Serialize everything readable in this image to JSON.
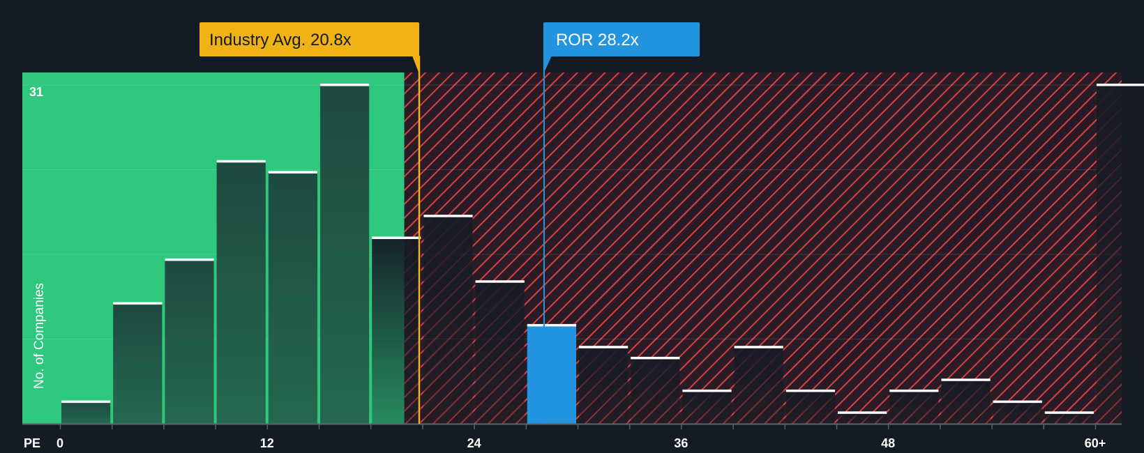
{
  "chart_data": {
    "type": "bar",
    "title": "",
    "xlabel": "PE",
    "ylabel": "No. of Companies",
    "ylim": [
      0,
      32
    ],
    "y_max_label": "31",
    "bin_width": 3,
    "x_ticks": [
      {
        "value": 0,
        "label": "0"
      },
      {
        "value": 12,
        "label": "12"
      },
      {
        "value": 24,
        "label": "24"
      },
      {
        "value": 36,
        "label": "36"
      },
      {
        "value": 48,
        "label": "48"
      },
      {
        "value": 60,
        "label": "60+"
      }
    ],
    "bins": [
      {
        "start": 0,
        "count": 2
      },
      {
        "start": 3,
        "count": 11
      },
      {
        "start": 6,
        "count": 15
      },
      {
        "start": 9,
        "count": 24
      },
      {
        "start": 12,
        "count": 23
      },
      {
        "start": 15,
        "count": 31
      },
      {
        "start": 18,
        "count": 17
      },
      {
        "start": 21,
        "count": 19
      },
      {
        "start": 24,
        "count": 13
      },
      {
        "start": 27,
        "count": 9
      },
      {
        "start": 30,
        "count": 7
      },
      {
        "start": 33,
        "count": 6
      },
      {
        "start": 36,
        "count": 3
      },
      {
        "start": 39,
        "count": 7
      },
      {
        "start": 42,
        "count": 3
      },
      {
        "start": 45,
        "count": 1
      },
      {
        "start": 48,
        "count": 3
      },
      {
        "start": 51,
        "count": 4
      },
      {
        "start": 54,
        "count": 2
      },
      {
        "start": 57,
        "count": 1
      },
      {
        "start": 60,
        "count": 31
      }
    ],
    "highlight_bin_start": 27,
    "industry_avg": {
      "value": 20.8,
      "label": "Industry Avg. 20.8x"
    },
    "company": {
      "value": 28.2,
      "label": "ROR 28.2x"
    },
    "fair_zone_end": 20
  },
  "colors": {
    "background": "#151b24",
    "fair_zone": "#2ec77e",
    "bar_dark": "#1e4a40",
    "bar_over": "#1c212b",
    "hatch": "#d84048",
    "hatch_bg": "#2a1c24",
    "highlight": "#2394e0",
    "industry": "#f0b214",
    "bar_cap": "#ffffff",
    "text": "#ffffff",
    "axis": "#5c6270"
  }
}
